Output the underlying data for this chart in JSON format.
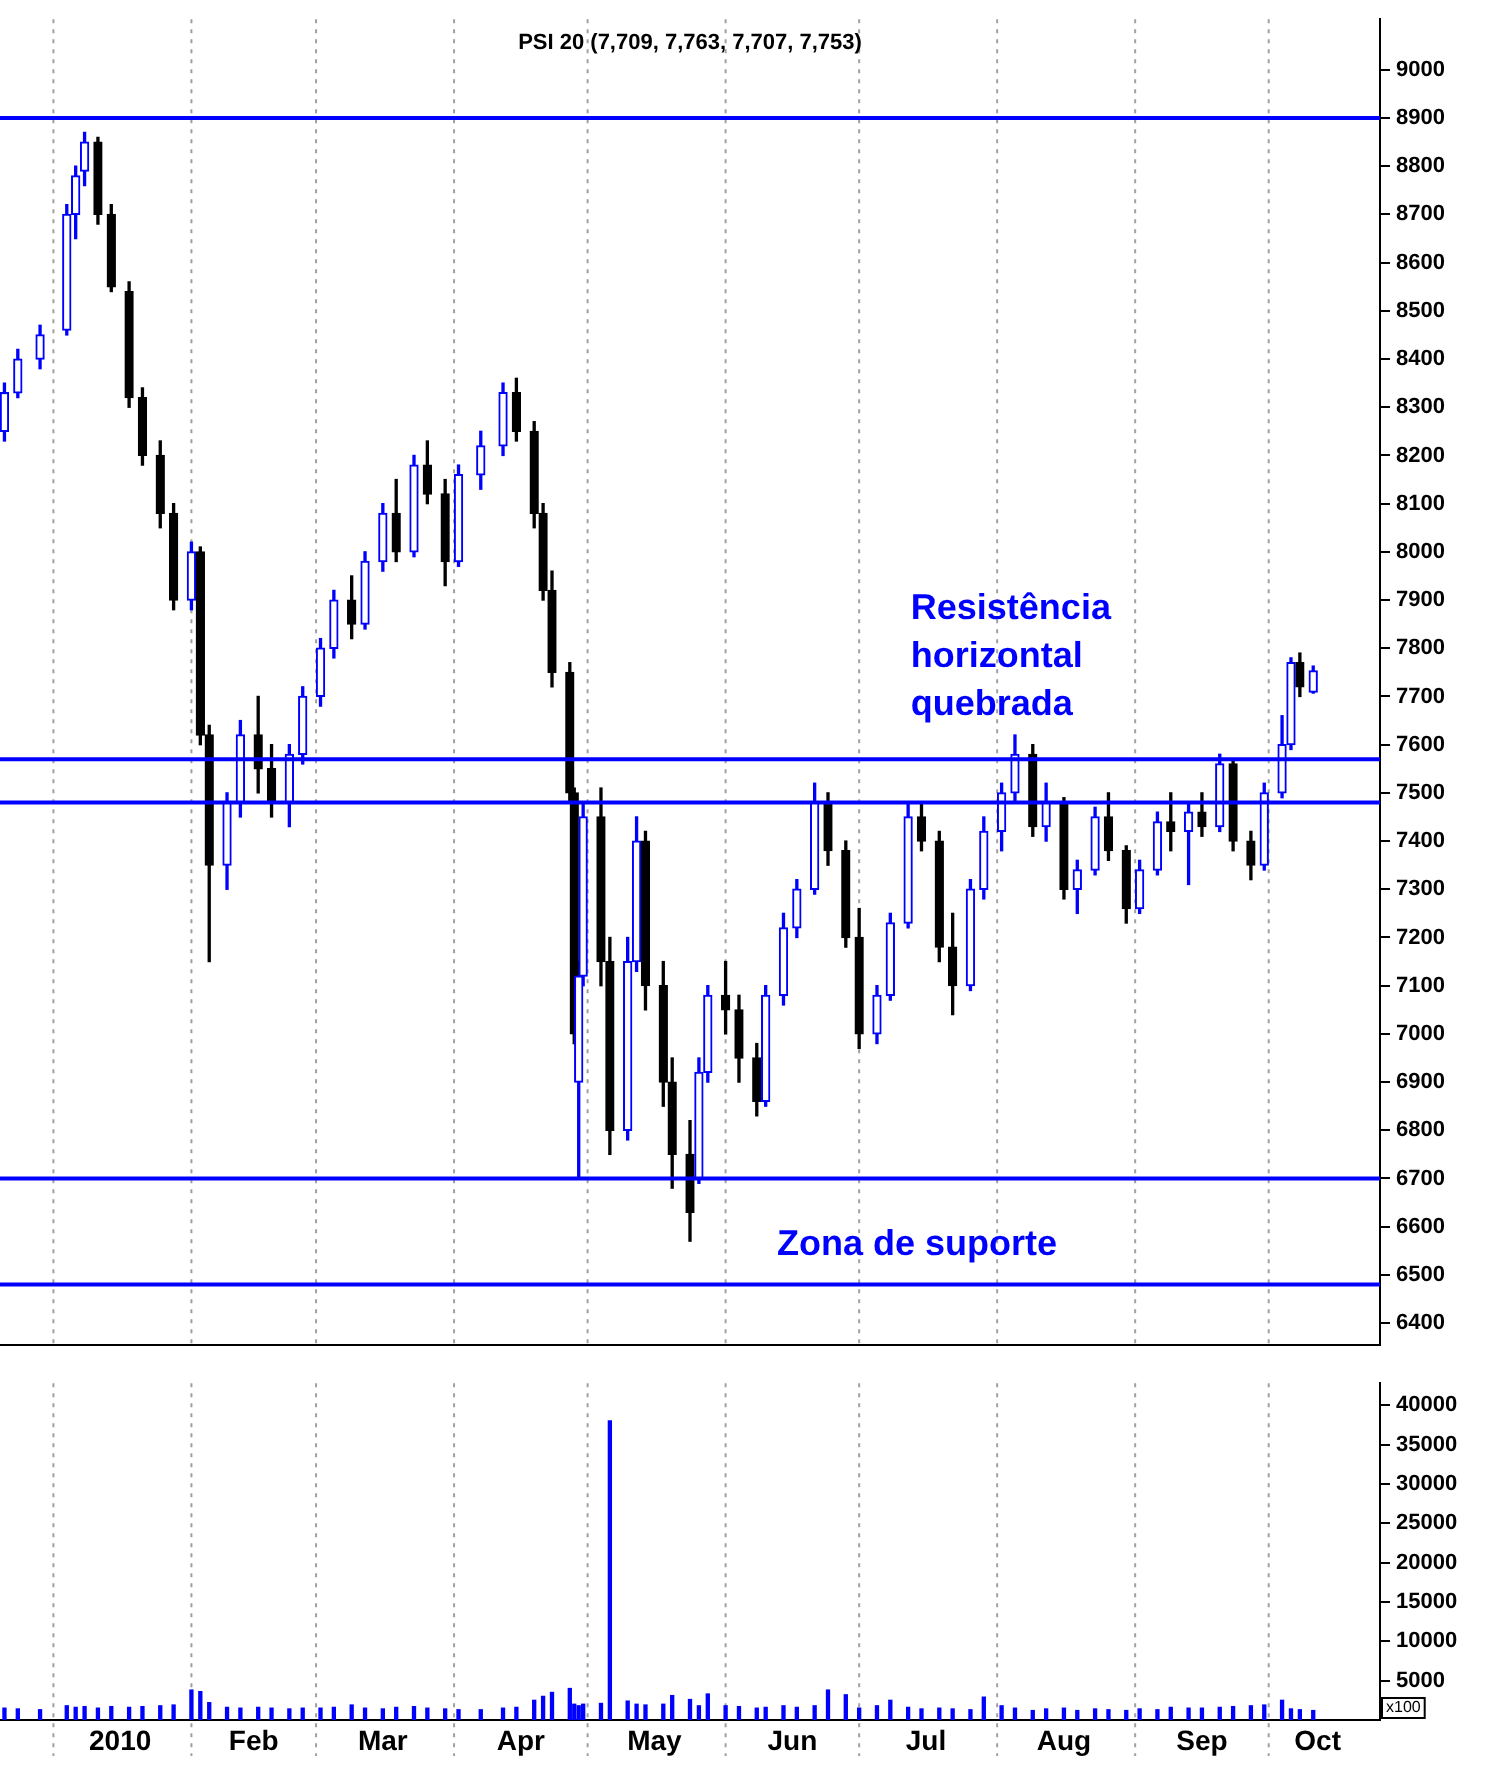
{
  "chart_data": [
    {
      "type": "candlestick",
      "title": "PSI 20 (7,709, 7,763, 7,707, 7,753)",
      "x": [
        "2009-12-21",
        "2009-12-24",
        "2009-12-29",
        "2010-01-04",
        "2010-01-06",
        "2010-01-08",
        "2010-01-11",
        "2010-01-14",
        "2010-01-18",
        "2010-01-21",
        "2010-01-25",
        "2010-01-28",
        "2010-02-01",
        "2010-02-03",
        "2010-02-05",
        "2010-02-09",
        "2010-02-12",
        "2010-02-16",
        "2010-02-19",
        "2010-02-23",
        "2010-02-26",
        "2010-03-02",
        "2010-03-05",
        "2010-03-09",
        "2010-03-12",
        "2010-03-16",
        "2010-03-19",
        "2010-03-23",
        "2010-03-26",
        "2010-03-30",
        "2010-04-02",
        "2010-04-07",
        "2010-04-12",
        "2010-04-15",
        "2010-04-19",
        "2010-04-21",
        "2010-04-23",
        "2010-04-27",
        "2010-04-28",
        "2010-04-29",
        "2010-04-30",
        "2010-05-04",
        "2010-05-06",
        "2010-05-10",
        "2010-05-12",
        "2010-05-14",
        "2010-05-18",
        "2010-05-20",
        "2010-05-24",
        "2010-05-26",
        "2010-05-28",
        "2010-06-01",
        "2010-06-04",
        "2010-06-08",
        "2010-06-10",
        "2010-06-14",
        "2010-06-17",
        "2010-06-21",
        "2010-06-24",
        "2010-06-28",
        "2010-07-01",
        "2010-07-05",
        "2010-07-08",
        "2010-07-12",
        "2010-07-15",
        "2010-07-19",
        "2010-07-22",
        "2010-07-26",
        "2010-07-29",
        "2010-08-02",
        "2010-08-05",
        "2010-08-09",
        "2010-08-12",
        "2010-08-16",
        "2010-08-19",
        "2010-08-23",
        "2010-08-26",
        "2010-08-30",
        "2010-09-02",
        "2010-09-06",
        "2010-09-09",
        "2010-09-13",
        "2010-09-16",
        "2010-09-20",
        "2010-09-23",
        "2010-09-27",
        "2010-09-30",
        "2010-10-04",
        "2010-10-06",
        "2010-10-08",
        "2010-10-11"
      ],
      "ohlc": [
        [
          8250,
          8350,
          8230,
          8330
        ],
        [
          8330,
          8420,
          8320,
          8400
        ],
        [
          8400,
          8470,
          8380,
          8450
        ],
        [
          8460,
          8720,
          8450,
          8700
        ],
        [
          8700,
          8800,
          8650,
          8780
        ],
        [
          8790,
          8870,
          8760,
          8850
        ],
        [
          8850,
          8860,
          8680,
          8700
        ],
        [
          8700,
          8720,
          8540,
          8550
        ],
        [
          8540,
          8560,
          8300,
          8320
        ],
        [
          8320,
          8340,
          8180,
          8200
        ],
        [
          8200,
          8230,
          8050,
          8080
        ],
        [
          8080,
          8100,
          7880,
          7900
        ],
        [
          7900,
          8020,
          7880,
          8000
        ],
        [
          8000,
          8010,
          7600,
          7620
        ],
        [
          7620,
          7640,
          7150,
          7350
        ],
        [
          7350,
          7500,
          7300,
          7480
        ],
        [
          7480,
          7650,
          7450,
          7620
        ],
        [
          7620,
          7700,
          7500,
          7550
        ],
        [
          7550,
          7600,
          7450,
          7480
        ],
        [
          7480,
          7600,
          7430,
          7580
        ],
        [
          7580,
          7720,
          7560,
          7700
        ],
        [
          7700,
          7820,
          7680,
          7800
        ],
        [
          7800,
          7920,
          7780,
          7900
        ],
        [
          7900,
          7950,
          7820,
          7850
        ],
        [
          7850,
          8000,
          7840,
          7980
        ],
        [
          7980,
          8100,
          7960,
          8080
        ],
        [
          8080,
          8150,
          7980,
          8000
        ],
        [
          8000,
          8200,
          7990,
          8180
        ],
        [
          8180,
          8230,
          8100,
          8120
        ],
        [
          8120,
          8150,
          7930,
          7980
        ],
        [
          7980,
          8180,
          7970,
          8160
        ],
        [
          8160,
          8250,
          8130,
          8220
        ],
        [
          8220,
          8350,
          8200,
          8330
        ],
        [
          8330,
          8360,
          8230,
          8250
        ],
        [
          8250,
          8270,
          8050,
          8080
        ],
        [
          8080,
          8100,
          7900,
          7920
        ],
        [
          7920,
          7960,
          7720,
          7750
        ],
        [
          7750,
          7770,
          7480,
          7500
        ],
        [
          7500,
          7510,
          6980,
          7000
        ],
        [
          6900,
          7150,
          6700,
          7120
        ],
        [
          7120,
          7480,
          7100,
          7450
        ],
        [
          7450,
          7510,
          7100,
          7150
        ],
        [
          7150,
          7200,
          6750,
          6800
        ],
        [
          6800,
          7200,
          6780,
          7150
        ],
        [
          7150,
          7450,
          7130,
          7400
        ],
        [
          7400,
          7420,
          7050,
          7100
        ],
        [
          7100,
          7150,
          6850,
          6900
        ],
        [
          6900,
          6950,
          6680,
          6750
        ],
        [
          6750,
          6820,
          6570,
          6630
        ],
        [
          6700,
          6950,
          6690,
          6920
        ],
        [
          6920,
          7100,
          6900,
          7080
        ],
        [
          7080,
          7150,
          7000,
          7050
        ],
        [
          7050,
          7080,
          6900,
          6950
        ],
        [
          6950,
          6980,
          6830,
          6860
        ],
        [
          6860,
          7100,
          6850,
          7080
        ],
        [
          7080,
          7250,
          7060,
          7220
        ],
        [
          7220,
          7320,
          7200,
          7300
        ],
        [
          7300,
          7520,
          7290,
          7480
        ],
        [
          7480,
          7500,
          7350,
          7380
        ],
        [
          7380,
          7400,
          7180,
          7200
        ],
        [
          7200,
          7260,
          6970,
          7000
        ],
        [
          7000,
          7100,
          6980,
          7080
        ],
        [
          7080,
          7250,
          7070,
          7230
        ],
        [
          7230,
          7480,
          7220,
          7450
        ],
        [
          7450,
          7480,
          7380,
          7400
        ],
        [
          7400,
          7420,
          7150,
          7180
        ],
        [
          7180,
          7250,
          7040,
          7100
        ],
        [
          7100,
          7320,
          7090,
          7300
        ],
        [
          7300,
          7450,
          7280,
          7420
        ],
        [
          7420,
          7520,
          7380,
          7500
        ],
        [
          7500,
          7620,
          7480,
          7580
        ],
        [
          7580,
          7600,
          7410,
          7430
        ],
        [
          7430,
          7520,
          7400,
          7480
        ],
        [
          7480,
          7490,
          7280,
          7300
        ],
        [
          7300,
          7360,
          7250,
          7340
        ],
        [
          7340,
          7470,
          7330,
          7450
        ],
        [
          7450,
          7500,
          7360,
          7380
        ],
        [
          7380,
          7390,
          7230,
          7260
        ],
        [
          7260,
          7360,
          7250,
          7340
        ],
        [
          7340,
          7460,
          7330,
          7440
        ],
        [
          7440,
          7500,
          7380,
          7420
        ],
        [
          7420,
          7480,
          7310,
          7460
        ],
        [
          7460,
          7500,
          7410,
          7430
        ],
        [
          7430,
          7580,
          7420,
          7560
        ],
        [
          7560,
          7570,
          7380,
          7400
        ],
        [
          7400,
          7420,
          7320,
          7350
        ],
        [
          7350,
          7520,
          7340,
          7500
        ],
        [
          7500,
          7660,
          7490,
          7600
        ],
        [
          7600,
          7780,
          7590,
          7770
        ],
        [
          7770,
          7790,
          7700,
          7720
        ],
        [
          7709,
          7763,
          7707,
          7753
        ]
      ],
      "xlim": [
        "2009-12-20",
        "2010-10-26"
      ],
      "xticks": [
        {
          "value": "2010-01-01",
          "label": null
        },
        {
          "value": "2010-02-01",
          "label": null
        },
        {
          "value": "2010-03-01",
          "label": null
        },
        {
          "value": "2010-04-01",
          "label": null
        },
        {
          "value": "2010-05-01",
          "label": null
        },
        {
          "value": "2010-06-01",
          "label": null
        },
        {
          "value": "2010-07-01",
          "label": null
        },
        {
          "value": "2010-08-01",
          "label": null
        },
        {
          "value": "2010-09-01",
          "label": null
        },
        {
          "value": "2010-10-01",
          "label": null
        }
      ],
      "ylim": [
        6355,
        9105
      ],
      "yticks": [
        6400,
        6500,
        6600,
        6700,
        6800,
        6900,
        7000,
        7100,
        7200,
        7300,
        7400,
        7500,
        7600,
        7700,
        7800,
        7900,
        8000,
        8100,
        8200,
        8300,
        8400,
        8500,
        8600,
        8700,
        8800,
        8900,
        9000
      ],
      "ref_lines": [
        {
          "axis": "y",
          "value": 8900,
          "color": "#0000ff"
        },
        {
          "axis": "y",
          "value": 7570,
          "color": "#0000ff"
        },
        {
          "axis": "y",
          "value": 7480,
          "color": "#0000ff"
        },
        {
          "axis": "y",
          "value": 6700,
          "color": "#0000ff"
        },
        {
          "axis": "y",
          "value": 6480,
          "color": "#0000ff"
        }
      ],
      "annotations": [
        "Resistência horizontal quebrada",
        "Zona de suporte"
      ],
      "grid": "x",
      "tick_labels": "y"
    },
    {
      "type": "bar",
      "color": "#0000ff",
      "x": [
        "2009-12-21",
        "2009-12-24",
        "2009-12-29",
        "2010-01-04",
        "2010-01-06",
        "2010-01-08",
        "2010-01-11",
        "2010-01-14",
        "2010-01-18",
        "2010-01-21",
        "2010-01-25",
        "2010-01-28",
        "2010-02-01",
        "2010-02-03",
        "2010-02-05",
        "2010-02-09",
        "2010-02-12",
        "2010-02-16",
        "2010-02-19",
        "2010-02-23",
        "2010-02-26",
        "2010-03-02",
        "2010-03-05",
        "2010-03-09",
        "2010-03-12",
        "2010-03-16",
        "2010-03-19",
        "2010-03-23",
        "2010-03-26",
        "2010-03-30",
        "2010-04-02",
        "2010-04-07",
        "2010-04-12",
        "2010-04-15",
        "2010-04-19",
        "2010-04-21",
        "2010-04-23",
        "2010-04-27",
        "2010-04-28",
        "2010-04-29",
        "2010-04-30",
        "2010-05-04",
        "2010-05-06",
        "2010-05-10",
        "2010-05-12",
        "2010-05-14",
        "2010-05-18",
        "2010-05-20",
        "2010-05-24",
        "2010-05-26",
        "2010-05-28",
        "2010-06-01",
        "2010-06-04",
        "2010-06-08",
        "2010-06-10",
        "2010-06-14",
        "2010-06-17",
        "2010-06-21",
        "2010-06-24",
        "2010-06-28",
        "2010-07-01",
        "2010-07-05",
        "2010-07-08",
        "2010-07-12",
        "2010-07-15",
        "2010-07-19",
        "2010-07-22",
        "2010-07-26",
        "2010-07-29",
        "2010-08-02",
        "2010-08-05",
        "2010-08-09",
        "2010-08-12",
        "2010-08-16",
        "2010-08-19",
        "2010-08-23",
        "2010-08-26",
        "2010-08-30",
        "2010-09-02",
        "2010-09-06",
        "2010-09-09",
        "2010-09-13",
        "2010-09-16",
        "2010-09-20",
        "2010-09-23",
        "2010-09-27",
        "2010-09-30",
        "2010-10-04",
        "2010-10-06",
        "2010-10-08",
        "2010-10-11"
      ],
      "values": [
        1500,
        1400,
        1300,
        1800,
        1600,
        1700,
        1500,
        1700,
        1600,
        1700,
        1800,
        1900,
        3800,
        3600,
        2200,
        1600,
        1500,
        1600,
        1500,
        1400,
        1500,
        1500,
        1600,
        1900,
        1500,
        1400,
        1600,
        1700,
        1500,
        1400,
        1300,
        1300,
        1500,
        1600,
        2500,
        3000,
        3500,
        4000,
        2000,
        1800,
        2000,
        2100,
        38000,
        2400,
        2000,
        1900,
        2000,
        3100,
        2600,
        1800,
        3300,
        1800,
        1700,
        1500,
        1600,
        1800,
        1600,
        1800,
        3800,
        3200,
        1500,
        1800,
        2500,
        1600,
        1400,
        1500,
        1400,
        1300,
        2900,
        1800,
        1500,
        1200,
        1400,
        1500,
        1200,
        1400,
        1300,
        1200,
        1400,
        1300,
        1600,
        1500,
        1500,
        1600,
        1700,
        1800,
        1900,
        2500,
        1400,
        1300,
        1200
      ],
      "xlim": [
        "2009-12-20",
        "2010-10-26"
      ],
      "xticks": [
        {
          "value": "2010-01-01",
          "label": null
        },
        {
          "value": "2010-01-16",
          "label": "2010"
        },
        {
          "value": "2010-02-01",
          "label": null
        },
        {
          "value": "2010-02-15",
          "label": "Feb"
        },
        {
          "value": "2010-03-01",
          "label": null
        },
        {
          "value": "2010-03-16",
          "label": "Mar"
        },
        {
          "value": "2010-04-01",
          "label": null
        },
        {
          "value": "2010-04-16",
          "label": "Apr"
        },
        {
          "value": "2010-05-01",
          "label": null
        },
        {
          "value": "2010-05-16",
          "label": "May"
        },
        {
          "value": "2010-06-01",
          "label": null
        },
        {
          "value": "2010-06-16",
          "label": "Jun"
        },
        {
          "value": "2010-07-01",
          "label": null
        },
        {
          "value": "2010-07-16",
          "label": "Jul"
        },
        {
          "value": "2010-08-01",
          "label": null
        },
        {
          "value": "2010-08-16",
          "label": "Aug"
        },
        {
          "value": "2010-09-01",
          "label": null
        },
        {
          "value": "2010-09-16",
          "label": "Sep"
        },
        {
          "value": "2010-10-01",
          "label": null
        },
        {
          "value": "2010-10-12",
          "label": "Oct"
        }
      ],
      "ylim": [
        0,
        42800
      ],
      "tick_labels": true,
      "yticks": [
        5000,
        10000,
        15000,
        20000,
        25000,
        30000,
        35000,
        40000
      ],
      "annotations": [
        "x100"
      ],
      "grid": "x"
    }
  ]
}
